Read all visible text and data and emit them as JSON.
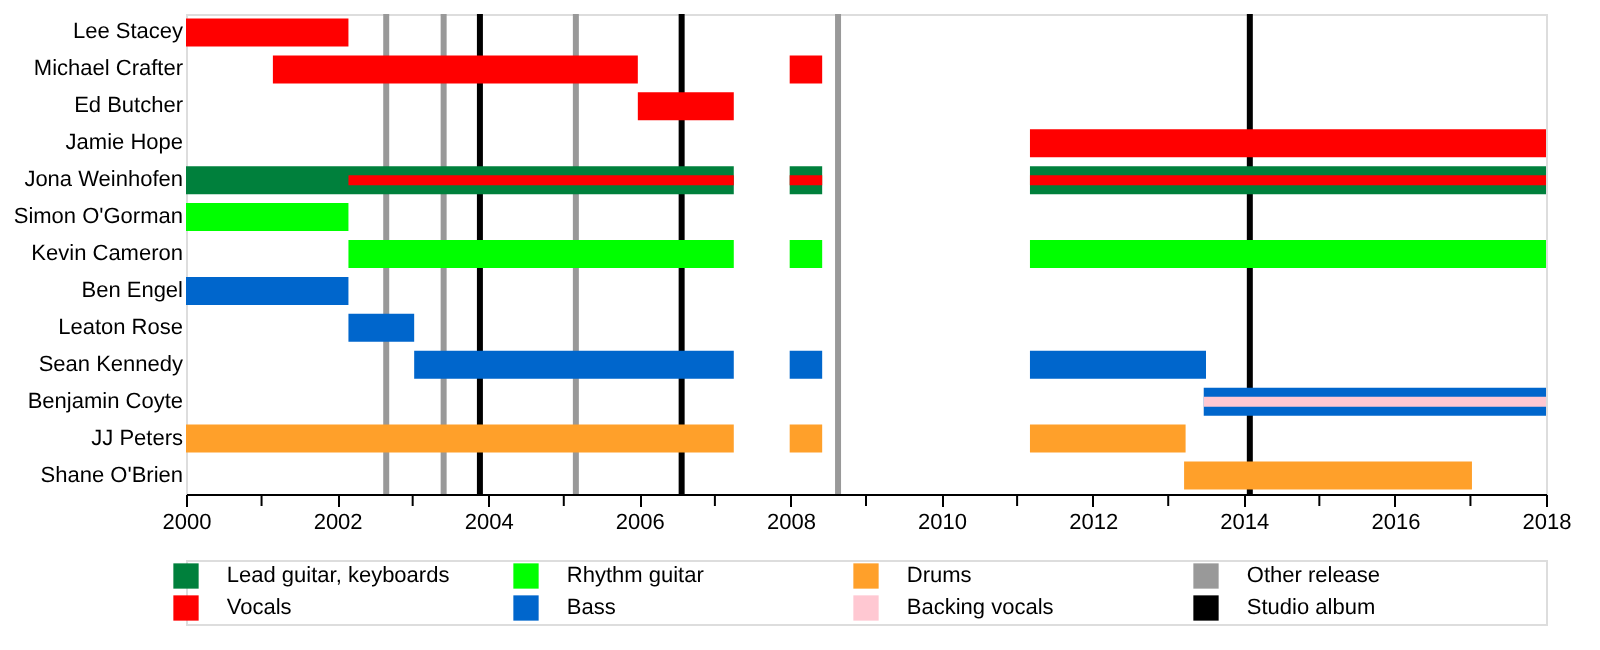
{
  "chart_data": {
    "type": "bar",
    "orientation": "horizontal",
    "categories": [
      "Lee Stacey",
      "Michael Crafter",
      "Ed Butcher",
      "Jamie Hope",
      "Jona Weinhofen",
      "Simon O'Gorman",
      "Kevin Cameron",
      "Ben Engel",
      "Leaton Rose",
      "Sean Kennedy",
      "Benjamin Coyte",
      "JJ Peters",
      "Shane O'Brien"
    ],
    "series": [
      {
        "name": "Lead guitar, keyboards",
        "color": "#00803c",
        "values": [
          null,
          null,
          null,
          null,
          7.25,
          null,
          null,
          null,
          null,
          null,
          null,
          null,
          null
        ],
        "base": [
          null,
          null,
          null,
          null,
          2000,
          null,
          null,
          null,
          null,
          null,
          null,
          null,
          null
        ]
      },
      {
        "color": "#00803c",
        "values": [
          null,
          null,
          null,
          null,
          0.43,
          null,
          null,
          null,
          null,
          null,
          null,
          null,
          null
        ],
        "base": [
          null,
          null,
          null,
          null,
          2007.99,
          null,
          null,
          null,
          null,
          null,
          null,
          null,
          null
        ]
      },
      {
        "color": "#00803c",
        "values": [
          null,
          null,
          null,
          null,
          6.83,
          null,
          null,
          null,
          null,
          null,
          null,
          null,
          null
        ],
        "base": [
          null,
          null,
          null,
          null,
          2011.17,
          null,
          null,
          null,
          null,
          null,
          null,
          null,
          null
        ]
      },
      {
        "name": "Vocals",
        "color": "#ff0000",
        "values": [
          2.15,
          4.83,
          1.27,
          null,
          5.1,
          null,
          null,
          null,
          null,
          null,
          null,
          null,
          null
        ],
        "base": [
          2000,
          2001.15,
          2005.98,
          null,
          2002.15,
          null,
          null,
          null,
          null,
          null,
          null,
          null,
          null
        ]
      },
      {
        "color": "#ff0000",
        "values": [
          null,
          0.43,
          null,
          null,
          0.43,
          null,
          null,
          null,
          null,
          null,
          null,
          null,
          null
        ],
        "base": [
          null,
          2007.99,
          null,
          null,
          2007.99,
          null,
          null,
          null,
          null,
          null,
          null,
          null,
          null
        ]
      },
      {
        "color": "#ff0000",
        "values": [
          null,
          null,
          null,
          6.83,
          6.83,
          null,
          null,
          null,
          null,
          null,
          null,
          null,
          null
        ],
        "base": [
          null,
          null,
          null,
          2011.17,
          2011.17,
          null,
          null,
          null,
          null,
          null,
          null,
          null,
          null
        ]
      },
      {
        "name": "Rhythm guitar",
        "color": "#00ff00",
        "values": [
          null,
          null,
          null,
          null,
          null,
          2.15,
          5.1,
          null,
          null,
          null,
          null,
          null,
          null
        ],
        "base": [
          null,
          null,
          null,
          null,
          null,
          2000,
          2002.15,
          null,
          null,
          null,
          null,
          null,
          null
        ]
      },
      {
        "color": "#00ff00",
        "values": [
          null,
          null,
          null,
          null,
          null,
          null,
          0.43,
          null,
          null,
          null,
          null,
          null,
          null
        ],
        "base": [
          null,
          null,
          null,
          null,
          null,
          null,
          2007.99,
          null,
          null,
          null,
          null,
          null,
          null
        ]
      },
      {
        "color": "#00ff00",
        "values": [
          null,
          null,
          null,
          null,
          null,
          null,
          6.83,
          null,
          null,
          null,
          null,
          null,
          null
        ],
        "base": [
          null,
          null,
          null,
          null,
          null,
          null,
          2011.17,
          null,
          null,
          null,
          null,
          null,
          null
        ]
      },
      {
        "name": "Bass",
        "color": "#0066cc",
        "values": [
          null,
          null,
          null,
          null,
          null,
          null,
          null,
          2.15,
          0.87,
          4.23,
          null,
          null,
          null
        ],
        "base": [
          null,
          null,
          null,
          null,
          null,
          null,
          null,
          2000,
          2002.15,
          2003.02,
          null,
          null,
          null
        ]
      },
      {
        "color": "#0066cc",
        "values": [
          null,
          null,
          null,
          null,
          null,
          null,
          null,
          null,
          null,
          0.43,
          null,
          null,
          null
        ],
        "base": [
          null,
          null,
          null,
          null,
          null,
          null,
          null,
          null,
          null,
          2007.99,
          null,
          null,
          null
        ]
      },
      {
        "color": "#0066cc",
        "values": [
          null,
          null,
          null,
          null,
          null,
          null,
          null,
          null,
          null,
          2.33,
          4.53,
          null,
          null
        ],
        "base": [
          null,
          null,
          null,
          null,
          null,
          null,
          null,
          null,
          null,
          2011.17,
          2013.47,
          null,
          null
        ]
      },
      {
        "name": "Drums",
        "color": "#ffa02a",
        "values": [
          null,
          null,
          null,
          null,
          null,
          null,
          null,
          null,
          null,
          null,
          null,
          7.25,
          null
        ],
        "base": [
          null,
          null,
          null,
          null,
          null,
          null,
          null,
          null,
          null,
          null,
          null,
          2000,
          null
        ]
      },
      {
        "color": "#ffa02a",
        "values": [
          null,
          null,
          null,
          null,
          null,
          null,
          null,
          null,
          null,
          null,
          null,
          0.43,
          null
        ],
        "base": [
          null,
          null,
          null,
          null,
          null,
          null,
          null,
          null,
          null,
          null,
          null,
          2007.99,
          null
        ]
      },
      {
        "color": "#ffa02a",
        "values": [
          null,
          null,
          null,
          null,
          null,
          null,
          null,
          null,
          null,
          null,
          null,
          2.06,
          3.81
        ],
        "base": [
          null,
          null,
          null,
          null,
          null,
          null,
          null,
          null,
          null,
          null,
          null,
          2011.17,
          2013.21
        ]
      },
      {
        "name": "Backing vocals",
        "color": "#ffc8d2",
        "values": [
          null,
          null,
          null,
          null,
          null,
          null,
          null,
          null,
          null,
          null,
          4.53,
          null,
          null
        ],
        "base": [
          null,
          null,
          null,
          null,
          null,
          null,
          null,
          null,
          null,
          null,
          2013.47,
          null,
          null
        ]
      }
    ],
    "xlim": [
      2000,
      2018
    ],
    "xticks": [
      2000,
      {
        "value": 2001,
        "label": null
      },
      2002,
      {
        "value": 2003,
        "label": null
      },
      2004,
      {
        "value": 2005,
        "label": null
      },
      2006,
      {
        "value": 2007,
        "label": null
      },
      2008,
      {
        "value": 2009,
        "label": null
      },
      2010,
      {
        "value": 2011,
        "label": null
      },
      2012,
      {
        "value": 2013,
        "label": null
      },
      2014,
      {
        "value": 2015,
        "label": null
      },
      2016,
      {
        "value": 2017,
        "label": null
      },
      2018
    ],
    "ref_lines": [
      {
        "axis": "x",
        "value": 2002.65,
        "label": "Other release",
        "color": "#999999"
      },
      {
        "axis": "x",
        "value": 2003.41,
        "color": "#999999"
      },
      {
        "axis": "x",
        "value": 2003.89,
        "label": "Studio album",
        "color": "#000000"
      },
      {
        "axis": "x",
        "value": 2005.16,
        "color": "#999999"
      },
      {
        "axis": "x",
        "value": 2006.56,
        "color": "#000000"
      },
      {
        "axis": "x",
        "value": 2008.63,
        "color": "#999999"
      },
      {
        "axis": "x",
        "value": 2014.08,
        "color": "#000000"
      }
    ],
    "legend": "bottom",
    "grid": false
  }
}
